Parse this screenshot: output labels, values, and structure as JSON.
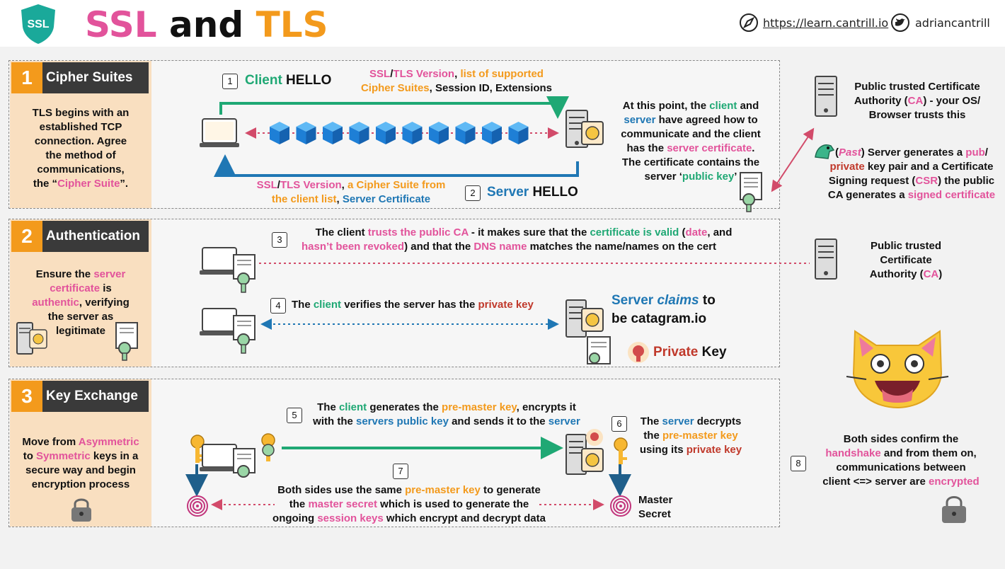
{
  "header": {
    "logo_text": "SSL",
    "title_ssl": "SSL",
    "title_and": " and ",
    "title_tls": "TLS",
    "link": "https://learn.cantrill.io",
    "handle": "adriancantrill"
  },
  "colors": {
    "pink": "#e2539b",
    "orange": "#f39a1c",
    "green": "#1fa874",
    "blue": "#1f77b4",
    "red": "#c0392b",
    "sidebar": "#f9dfc0",
    "dark": "#3a3a3a"
  },
  "s1": {
    "num": "1",
    "name": "Cipher Suites",
    "side": [
      "TLS begins with an",
      "established TCP",
      "connection. Agree",
      "the method of",
      "communications,"
    ],
    "side_last_pre": "the “",
    "side_last_hl": "Cipher Suite",
    "side_last_post": "”.",
    "step1": "1",
    "client": "Client",
    "hello": " HELLO",
    "ch1_a": "SSL",
    "ch1_b": "/",
    "ch1_c": "TLS Version",
    "ch1_d": ", ",
    "ch1_e": "list of supported",
    "ch2_a": "Cipher Suites",
    "ch2_b": ", Session ID, Extensions",
    "step2": "2",
    "server": "Server",
    "sh1_a": "SSL",
    "sh1_b": "/",
    "sh1_c": "TLS Version",
    "sh1_d": ", ",
    "sh1_e": "a Cipher Suite from",
    "sh2_a": "the client list",
    "sh2_b": ", ",
    "sh2_c": "Server Certificate",
    "agree_1a": "At this point, the ",
    "agree_1b": "client",
    "agree_1c": " and",
    "agree_2a": "server",
    "agree_2b": " have agreed how to",
    "agree_3": "communicate and the client",
    "agree_4a": "has the ",
    "agree_4b": "server certificate",
    "agree_4c": ".",
    "agree_5": "The certificate contains the",
    "agree_6a": "server ‘",
    "agree_6b": "public key",
    "agree_6c": "’"
  },
  "right_top": {
    "ca_1a": "Public trusted Certificate",
    "ca_2a": "Authority (",
    "ca_2b": "CA",
    "ca_2c": ") - your OS/",
    "ca_3": "Browser trusts this",
    "past_1a": "(",
    "past_1b": "Past",
    "past_1c": ") Server generates a ",
    "past_1d": "pub",
    "past_1e": "/",
    "past_2a": "private",
    "past_2b": " key pair and a Certificate",
    "past_3a": "Signing request (",
    "past_3b": "CSR",
    "past_3c": ") the public",
    "past_4a": "CA generates a ",
    "past_4b": "signed certificate"
  },
  "s2": {
    "num": "2",
    "name": "Authentication",
    "side_1a": "Ensure the ",
    "side_1b": "server",
    "side_2a": "certificate",
    "side_2b": " is",
    "side_3a": "authentic",
    "side_3b": ", verifying",
    "side_4": "the server as",
    "side_5": "legitimate",
    "step3": "3",
    "l3_1a": "The client ",
    "l3_1b": "trusts the public CA",
    "l3_1c": " - it makes sure that the ",
    "l3_1d": "certificate is valid",
    "l3_1e": " (",
    "l3_1f": "date",
    "l3_1g": ", and",
    "l3_2a": "hasn’t been revoked",
    "l3_2b": ") and that the ",
    "l3_2c": "DNS name",
    "l3_2d": " matches the name/names on the cert",
    "step4": "4",
    "l4_a": "The ",
    "l4_b": "client",
    "l4_c": " verifies the server has the ",
    "l4_d": "private key",
    "claim_1a": "Server ",
    "claim_1b": "claims",
    "claim_1c": " to",
    "claim_2": "be catagram.io",
    "pk_a": "Private",
    "pk_b": " Key",
    "ca2_1": "Public trusted",
    "ca2_2": "Certificate",
    "ca2_3a": "Authority (",
    "ca2_3b": "CA",
    "ca2_3c": ")"
  },
  "s3": {
    "num": "3",
    "name": "Key Exchange",
    "side_1a": "Move from ",
    "side_1b": "Asymmetric",
    "side_2a": "to ",
    "side_2b": "Symmetric",
    "side_2c": " keys in a",
    "side_3": "secure way and begin",
    "side_4": "encryption process",
    "step5": "5",
    "l5_1a": "The ",
    "l5_1b": "client",
    "l5_1c": " generates the ",
    "l5_1d": "pre-master key",
    "l5_1e": ", encrypts it",
    "l5_2a": "with the ",
    "l5_2b": "servers public key",
    "l5_2c": " and sends it to the ",
    "l5_2d": "server",
    "step6": "6",
    "l6_1a": "The ",
    "l6_1b": "server",
    "l6_1c": " decrypts",
    "l6_2a": "the ",
    "l6_2b": "pre-master key",
    "l6_3a": "using its ",
    "l6_3b": "private key",
    "step7": "7",
    "l7_1a": "Both sides use the same ",
    "l7_1b": "pre-master key",
    "l7_1c": " to generate",
    "l7_2a": "the ",
    "l7_2b": "master secret",
    "l7_2c": " which is used to generate the",
    "l7_3a": "ongoing ",
    "l7_3b": "session keys",
    "l7_3c": " which encrypt and decrypt data",
    "ms_1": "Master",
    "ms_2": "Secret",
    "step8": "8",
    "l8_1": "Both sides confirm the",
    "l8_2a": "handshake",
    "l8_2b": " and from them on,",
    "l8_3": "communications between",
    "l8_4a": "client <=> server are ",
    "l8_4b": "encrypted"
  }
}
